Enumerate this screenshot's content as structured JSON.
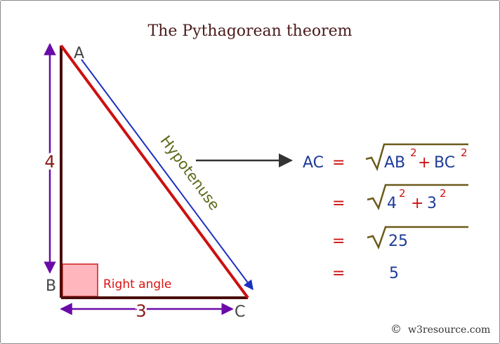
{
  "title": "The Pythagorean theorem",
  "vertices": {
    "a": "A",
    "b": "B",
    "c": "C"
  },
  "sides": {
    "ab": "4",
    "bc": "3"
  },
  "labels": {
    "hypotenuse": "Hypotenuse",
    "right_angle": "Right angle"
  },
  "equation": {
    "lhs": "AC",
    "equals": "=",
    "line1": {
      "term1": "AB",
      "exp1": "2",
      "plus": "+",
      "term2": "BC",
      "exp2": "2"
    },
    "line2": {
      "term1": "4",
      "exp1": "2",
      "plus": "+",
      "term2": "3",
      "exp2": "2"
    },
    "line3": {
      "value": "25"
    },
    "line4": {
      "value": "5"
    }
  },
  "footer": {
    "copyright_symbol": "©",
    "site": "w3resource.com"
  },
  "colors": {
    "triangle_hyp": "#cc1111",
    "triangle_legs": "#4a0d0d",
    "hyp_arrow": "#1a2fbf",
    "side_arrows": "#6a0aa8",
    "side_numbers": "#8a1a1a",
    "hyp_text": "#5a6a1a",
    "right_angle_fill": "#ffb6bd",
    "right_angle_stroke": "#d84a4a",
    "right_angle_text": "#dd1111",
    "vertex_text": "#444444",
    "eq_blue": "#1f3b9a",
    "eq_red": "#cc1111",
    "sqrt_stroke": "#6b5a1a",
    "connector_arrow": "#333333",
    "title_text": "#4a1a1a"
  }
}
